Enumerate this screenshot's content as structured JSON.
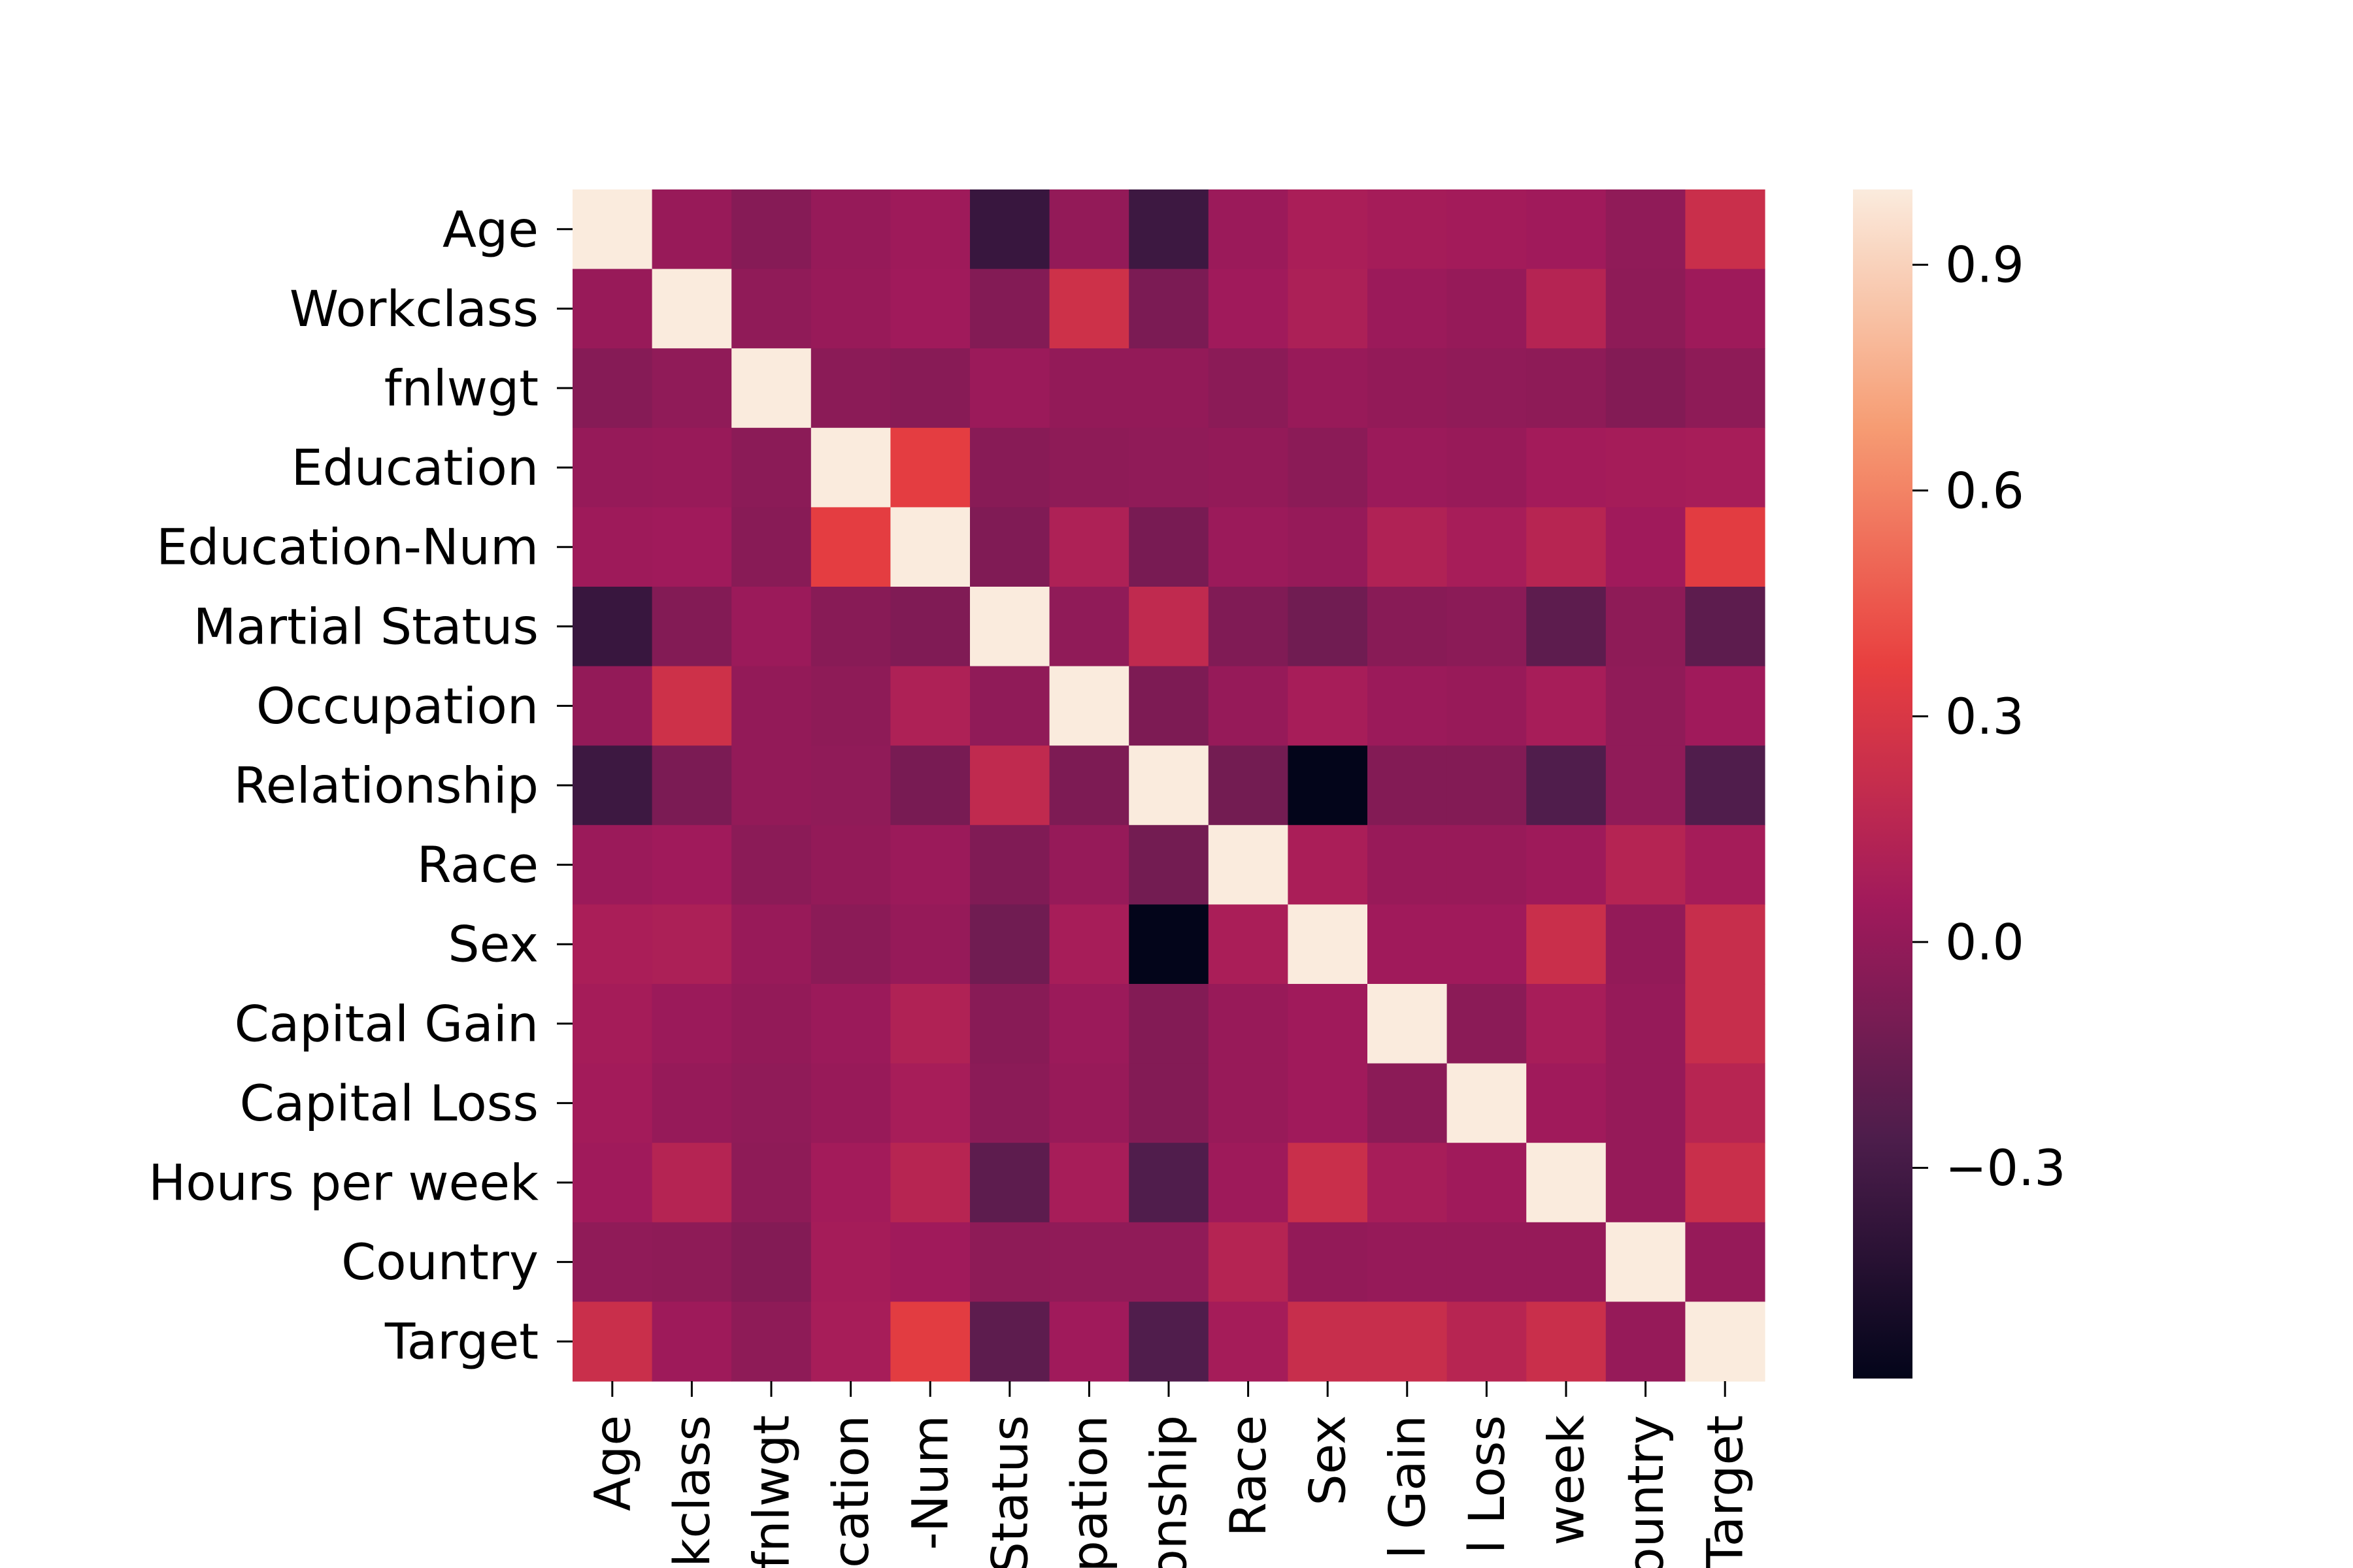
{
  "chart_data": {
    "type": "heatmap",
    "title": "",
    "xlabel": "",
    "ylabel": "",
    "rows": [
      "Age",
      "Workclass",
      "fnlwgt",
      "Education",
      "Education-Num",
      "Martial Status",
      "Occupation",
      "Relationship",
      "Race",
      "Sex",
      "Capital Gain",
      "Capital Loss",
      "Hours per week",
      "Country",
      "Target"
    ],
    "columns_visible": [
      "Age",
      "kclass",
      "fnlwgt",
      "cation",
      "-Num",
      "Status",
      "pation",
      "onship",
      "Race",
      "Sex",
      "l Gain",
      "l Loss",
      "week",
      "ountry",
      "Target"
    ],
    "matrix": [
      [
        1.0,
        0.02,
        -0.05,
        0.01,
        0.04,
        -0.35,
        0.0,
        -0.33,
        0.03,
        0.09,
        0.07,
        0.06,
        0.05,
        -0.01,
        0.23
      ],
      [
        0.02,
        1.0,
        -0.01,
        0.02,
        0.05,
        -0.06,
        0.25,
        -0.09,
        0.05,
        0.1,
        0.03,
        0.01,
        0.14,
        -0.02,
        0.04
      ],
      [
        -0.05,
        -0.01,
        1.0,
        -0.03,
        -0.04,
        0.03,
        0.0,
        0.0,
        -0.03,
        0.02,
        0.0,
        -0.01,
        -0.02,
        -0.06,
        -0.02
      ],
      [
        0.01,
        0.02,
        -0.03,
        1.0,
        0.35,
        -0.04,
        -0.02,
        -0.01,
        0.0,
        -0.03,
        0.03,
        0.02,
        0.06,
        0.07,
        0.08
      ],
      [
        0.04,
        0.05,
        -0.04,
        0.35,
        1.0,
        -0.07,
        0.11,
        -0.1,
        0.03,
        0.01,
        0.12,
        0.08,
        0.15,
        0.05,
        0.34
      ],
      [
        -0.35,
        -0.06,
        0.03,
        -0.04,
        -0.07,
        1.0,
        -0.01,
        0.19,
        -0.07,
        -0.13,
        -0.04,
        -0.03,
        -0.2,
        -0.02,
        -0.2
      ],
      [
        0.0,
        0.25,
        0.0,
        -0.02,
        0.11,
        -0.01,
        1.0,
        -0.08,
        0.01,
        0.08,
        0.03,
        0.02,
        0.08,
        -0.01,
        0.05
      ],
      [
        -0.33,
        -0.09,
        0.0,
        -0.01,
        -0.1,
        0.19,
        -0.08,
        1.0,
        -0.12,
        -0.58,
        -0.06,
        -0.06,
        -0.25,
        -0.01,
        -0.25
      ],
      [
        0.03,
        0.05,
        -0.03,
        0.0,
        0.03,
        -0.07,
        0.01,
        -0.12,
        1.0,
        0.09,
        0.02,
        0.02,
        0.04,
        0.14,
        0.07
      ],
      [
        0.09,
        0.1,
        0.02,
        -0.03,
        0.01,
        -0.13,
        0.08,
        -0.58,
        0.09,
        1.0,
        0.05,
        0.05,
        0.23,
        0.0,
        0.22
      ],
      [
        0.07,
        0.03,
        0.0,
        0.03,
        0.12,
        -0.04,
        0.03,
        -0.06,
        0.02,
        0.05,
        1.0,
        -0.03,
        0.08,
        0.01,
        0.22
      ],
      [
        0.06,
        0.01,
        -0.01,
        0.02,
        0.08,
        -0.03,
        0.02,
        -0.06,
        0.02,
        0.05,
        -0.03,
        1.0,
        0.05,
        0.01,
        0.15
      ],
      [
        0.05,
        0.14,
        -0.02,
        0.06,
        0.15,
        -0.2,
        0.08,
        -0.25,
        0.04,
        0.23,
        0.08,
        0.05,
        1.0,
        0.01,
        0.23
      ],
      [
        -0.01,
        -0.02,
        -0.06,
        0.07,
        0.05,
        -0.02,
        -0.01,
        -0.01,
        0.14,
        0.0,
        0.01,
        0.01,
        0.01,
        1.0,
        0.01
      ],
      [
        0.23,
        0.04,
        -0.02,
        0.08,
        0.34,
        -0.2,
        0.05,
        -0.25,
        0.07,
        0.22,
        0.22,
        0.15,
        0.23,
        0.01,
        1.0
      ]
    ],
    "colorbar": {
      "vmin": -0.58,
      "vmax": 1.0,
      "ticks": [
        0.9,
        0.6,
        0.3,
        0.0,
        -0.3
      ],
      "tick_labels": [
        "0.9",
        "0.6",
        "0.3",
        "0.0",
        "−0.3"
      ],
      "colormap": "rocket",
      "stops": [
        "#03051a",
        "#4c1d4b",
        "#a11a5b",
        "#e83f3f",
        "#f69c73",
        "#faebdd"
      ]
    },
    "grid": false,
    "legend": "colorbar-right"
  }
}
